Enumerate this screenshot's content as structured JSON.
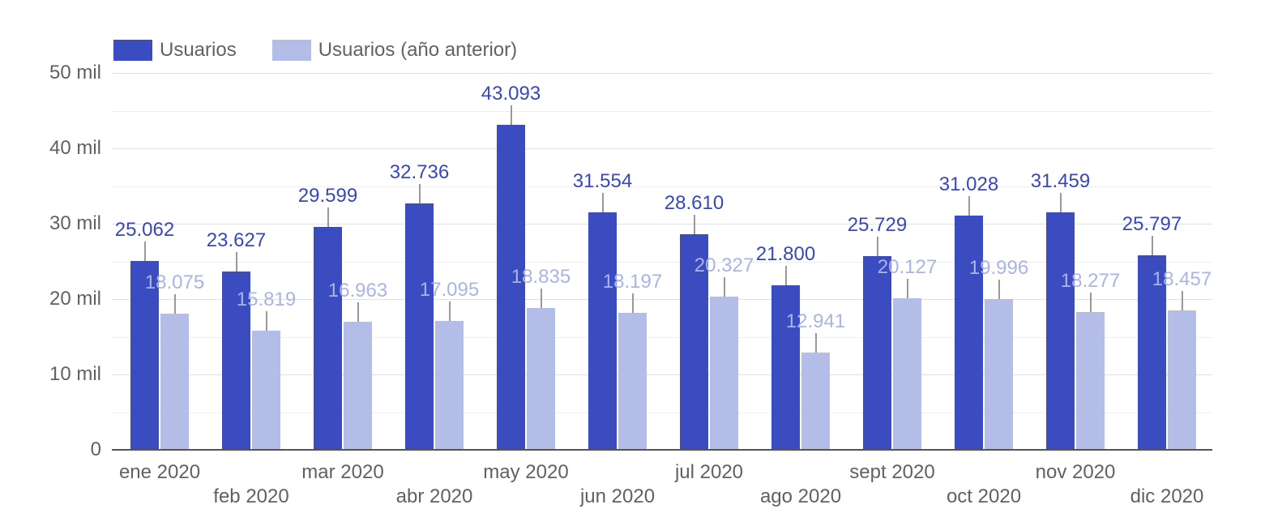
{
  "chart_data": {
    "type": "bar",
    "title": "",
    "categories": [
      "ene 2020",
      "feb 2020",
      "mar 2020",
      "abr 2020",
      "may 2020",
      "jun 2020",
      "jul 2020",
      "ago 2020",
      "sept 2020",
      "oct 2020",
      "nov 2020",
      "dic 2020"
    ],
    "series": [
      {
        "name": "Usuarios",
        "color": "#3b4cc0",
        "label_color": "#3647c0",
        "values": [
          25062,
          23627,
          29599,
          32736,
          43093,
          31554,
          28610,
          21800,
          25729,
          31028,
          31459,
          25797
        ]
      },
      {
        "name": "Usuarios (año anterior)",
        "color": "#b4bce8",
        "label_color": "#aab4e4",
        "values": [
          18075,
          15819,
          16963,
          17095,
          18835,
          18197,
          20327,
          12941,
          20127,
          19996,
          18277,
          18457
        ]
      }
    ],
    "ylim": [
      0,
      50000
    ],
    "yticks": [
      0,
      10000,
      20000,
      30000,
      40000,
      50000
    ],
    "ytick_labels": [
      "0",
      "10 mil",
      "20 mil",
      "30 mil",
      "40 mil",
      "50 mil"
    ],
    "minor_tick_step": 5000,
    "grid": "horizontal",
    "legend_position": "top-left",
    "number_format": "thousands-dot",
    "data_labels": true
  },
  "colors": {
    "axis_text": "#616161",
    "gridline_major": "#e0e0e0",
    "gridline_minor": "#efefef",
    "baseline": "#545454",
    "stem": "#999999",
    "background": "#ffffff"
  }
}
